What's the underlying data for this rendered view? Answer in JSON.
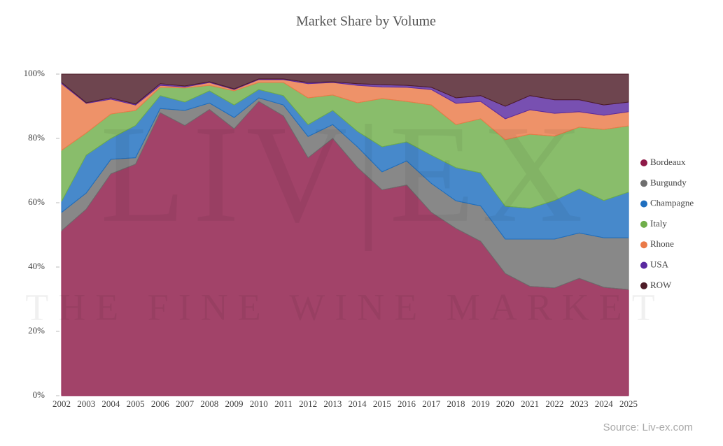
{
  "chart_data": {
    "type": "stacked_area",
    "title": "Market Share by Volume",
    "source": "Source: Liv-ex.com",
    "watermark": [
      "LIV|EX",
      "THE FINE WINE MARKET"
    ],
    "categories": [
      "2002",
      "2003",
      "2004",
      "2005",
      "2006",
      "2007",
      "2008",
      "2009",
      "2010",
      "2011",
      "2012",
      "2013",
      "2014",
      "2015",
      "2016",
      "2017",
      "2018",
      "2019",
      "2020",
      "2021",
      "2022",
      "2023",
      "2024",
      "2025"
    ],
    "series": [
      {
        "name": "Bordeaux",
        "color": "#8e1a48",
        "values": [
          51.3,
          58,
          69,
          72,
          88,
          84,
          89,
          83,
          91.5,
          87,
          74,
          80,
          71,
          64,
          65.5,
          57,
          52,
          48,
          38,
          34,
          33.5,
          36.5,
          33.7,
          33
        ]
      },
      {
        "name": "Burgundy",
        "color": "#6e6e6e",
        "values": [
          5.7,
          5,
          4.5,
          2,
          1.3,
          4.7,
          2,
          3.5,
          1.1,
          3.4,
          6.6,
          4.3,
          6.4,
          5.6,
          7.5,
          9,
          8.6,
          11,
          10.7,
          14.7,
          15.2,
          14.1,
          15.4,
          16.1
        ]
      },
      {
        "name": "Champagne",
        "color": "#1f6fbf",
        "values": [
          3.4,
          11.8,
          6.5,
          10,
          4,
          2.6,
          3.8,
          3.9,
          2.6,
          2.9,
          3.7,
          4.4,
          4.8,
          7.8,
          5.9,
          8.8,
          10.3,
          10.3,
          10.2,
          9.6,
          12,
          13.7,
          11.6,
          14.2
        ]
      },
      {
        "name": "Italy",
        "color": "#6fae4a",
        "values": [
          15.9,
          6.9,
          7.6,
          4.7,
          2.6,
          4.4,
          1.7,
          4.4,
          2.2,
          4.1,
          8.3,
          4.8,
          8.9,
          15,
          12.6,
          15.6,
          13.4,
          16.8,
          20.7,
          23,
          20,
          19.2,
          22.1,
          20.6
        ]
      },
      {
        "name": "Rhone",
        "color": "#ea7a48",
        "values": [
          20.7,
          9.2,
          4.6,
          1.7,
          0.6,
          0.3,
          0.9,
          0.4,
          0.9,
          0.9,
          4.4,
          3.9,
          5.4,
          3.6,
          4.4,
          4.8,
          6.6,
          5.4,
          6.5,
          7.6,
          7.1,
          4.8,
          4.4,
          4.4
        ]
      },
      {
        "name": "USA",
        "color": "#5a2aa0",
        "values": [
          0.4,
          0.2,
          0.4,
          0.3,
          0.5,
          0.3,
          0.2,
          0.2,
          0.2,
          0.2,
          0.4,
          0.2,
          0.5,
          0.7,
          0.6,
          0.7,
          1.7,
          1.8,
          3.9,
          4.4,
          4.2,
          3.7,
          3.2,
          3
        ]
      },
      {
        "name": "ROW",
        "color": "#4e1c28",
        "values": [
          2.6,
          8.9,
          7.4,
          9.3,
          3,
          3.7,
          2.4,
          4.6,
          1.5,
          1.5,
          2.6,
          2.4,
          3,
          3.3,
          3.5,
          4.1,
          7.4,
          6.7,
          10,
          6.7,
          8,
          8,
          9.6,
          8.7
        ]
      }
    ],
    "ylim": [
      0,
      100
    ],
    "yticks": [
      {
        "value": 0,
        "label": "0%"
      },
      {
        "value": 20,
        "label": "20%"
      },
      {
        "value": 40,
        "label": "40%"
      },
      {
        "value": 60,
        "label": "60%"
      },
      {
        "value": 80,
        "label": "80%"
      },
      {
        "value": 100,
        "label": "100%"
      }
    ],
    "legend": "right"
  }
}
